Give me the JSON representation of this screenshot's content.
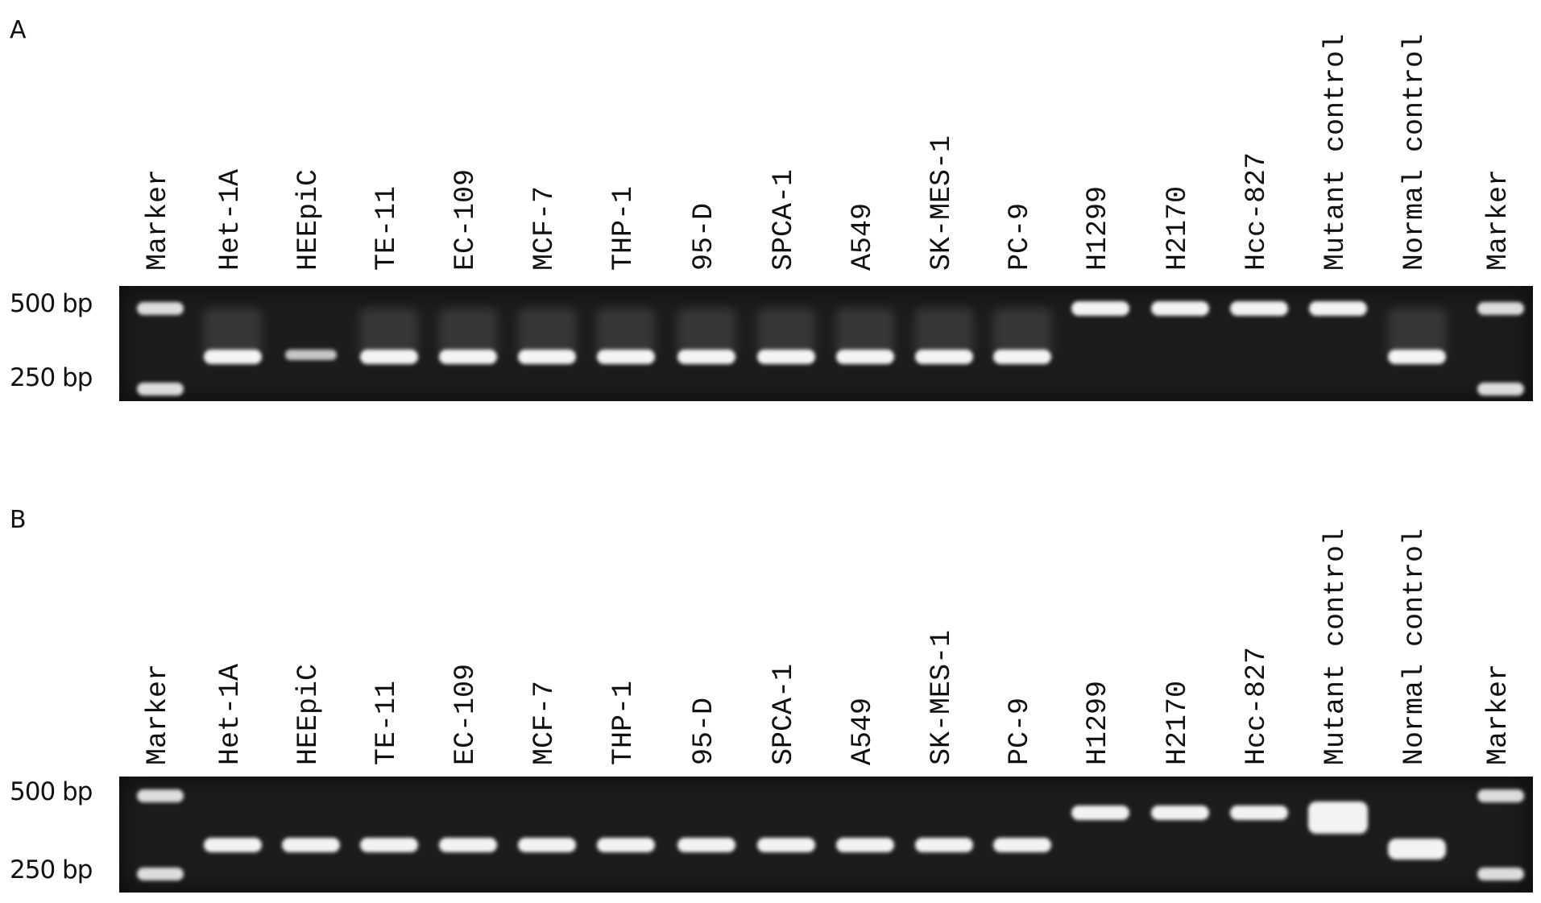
{
  "figure": {
    "panels": [
      {
        "letter": "A",
        "size_markers": [
          "500 bp",
          "250 bp"
        ],
        "lanes": [
          {
            "label": "Marker",
            "bands": [
              "500",
              "250"
            ]
          },
          {
            "label": "Het-1A",
            "bands": [
              "low"
            ]
          },
          {
            "label": "HEEpiC",
            "bands": [
              "low-faint"
            ]
          },
          {
            "label": "TE-11",
            "bands": [
              "low"
            ]
          },
          {
            "label": "EC-109",
            "bands": [
              "low"
            ]
          },
          {
            "label": "MCF-7",
            "bands": [
              "low"
            ]
          },
          {
            "label": "THP-1",
            "bands": [
              "low"
            ]
          },
          {
            "label": "95-D",
            "bands": [
              "low"
            ]
          },
          {
            "label": "SPCA-1",
            "bands": [
              "low"
            ]
          },
          {
            "label": "A549",
            "bands": [
              "low"
            ]
          },
          {
            "label": "SK-MES-1",
            "bands": [
              "low"
            ]
          },
          {
            "label": "PC-9",
            "bands": [
              "low"
            ]
          },
          {
            "label": "H1299",
            "bands": [
              "high"
            ]
          },
          {
            "label": "H2170",
            "bands": [
              "high"
            ]
          },
          {
            "label": "Hcc-827",
            "bands": [
              "high"
            ]
          },
          {
            "label": "Mutant control",
            "bands": [
              "high"
            ]
          },
          {
            "label": "Normal control",
            "bands": [
              "low"
            ]
          },
          {
            "label": "Marker",
            "bands": [
              "500",
              "250"
            ]
          }
        ]
      },
      {
        "letter": "B",
        "size_markers": [
          "500 bp",
          "250 bp"
        ],
        "lanes": [
          {
            "label": "Marker",
            "bands": [
              "500",
              "250"
            ]
          },
          {
            "label": "Het-1A",
            "bands": [
              "low"
            ]
          },
          {
            "label": "HEEpiC",
            "bands": [
              "low"
            ]
          },
          {
            "label": "TE-11",
            "bands": [
              "low"
            ]
          },
          {
            "label": "EC-109",
            "bands": [
              "low"
            ]
          },
          {
            "label": "MCF-7",
            "bands": [
              "low"
            ]
          },
          {
            "label": "THP-1",
            "bands": [
              "low"
            ]
          },
          {
            "label": "95-D",
            "bands": [
              "low"
            ]
          },
          {
            "label": "SPCA-1",
            "bands": [
              "low"
            ]
          },
          {
            "label": "A549",
            "bands": [
              "low"
            ]
          },
          {
            "label": "SK-MES-1",
            "bands": [
              "low"
            ]
          },
          {
            "label": "PC-9",
            "bands": [
              "low"
            ]
          },
          {
            "label": "H1299",
            "bands": [
              "high"
            ]
          },
          {
            "label": "H2170",
            "bands": [
              "high"
            ]
          },
          {
            "label": "Hcc-827",
            "bands": [
              "high"
            ]
          },
          {
            "label": "Mutant control",
            "bands": [
              "high-strong"
            ]
          },
          {
            "label": "Normal control",
            "bands": [
              "low-strong"
            ]
          },
          {
            "label": "Marker",
            "bands": [
              "500",
              "250"
            ]
          }
        ]
      }
    ]
  }
}
